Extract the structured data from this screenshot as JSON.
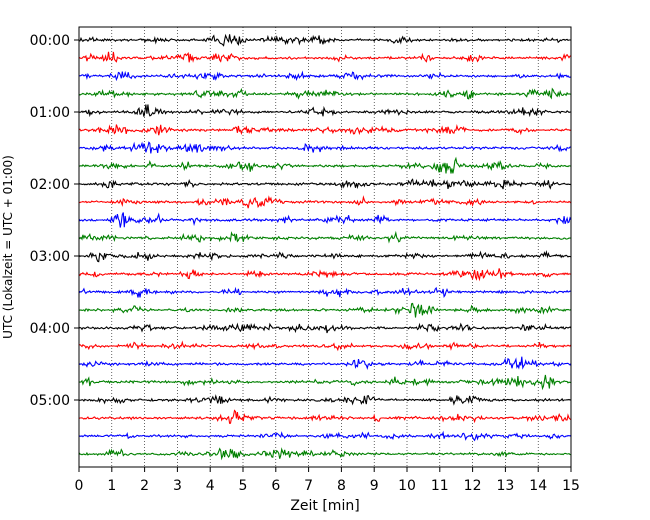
{
  "chart_data": {
    "type": "line",
    "title": "",
    "xlabel": "Zeit  [min]",
    "ylabel": "UTC (Lokalzeit = UTC + 01:00)",
    "xlim": [
      0,
      15
    ],
    "x_ticks": [
      0,
      1,
      2,
      3,
      4,
      5,
      6,
      7,
      8,
      9,
      10,
      11,
      12,
      13,
      14,
      15
    ],
    "x_tick_labels": [
      "0",
      "1",
      "2",
      "3",
      "4",
      "5",
      "6",
      "7",
      "8",
      "9",
      "10",
      "11",
      "12",
      "13",
      "14",
      "15"
    ],
    "y_tick_labels": [
      "00:00",
      "01:00",
      "02:00",
      "03:00",
      "04:00",
      "05:00"
    ],
    "grid": {
      "x": true,
      "y": false,
      "style": "dotted"
    },
    "row_start_times": [
      "00:00",
      "00:15",
      "00:30",
      "00:45",
      "01:00",
      "01:15",
      "01:30",
      "01:45",
      "02:00",
      "02:15",
      "02:30",
      "02:45",
      "03:00",
      "03:15",
      "03:30",
      "03:45",
      "04:00",
      "04:15",
      "04:30",
      "04:45",
      "05:00",
      "05:15",
      "05:30",
      "05:45"
    ],
    "row_minutes": 15,
    "color_cycle": [
      "#000000",
      "#ff0000",
      "#0000ff",
      "#008000"
    ],
    "series_note": "24 stacked seismogram traces, one per 15-minute window"
  }
}
